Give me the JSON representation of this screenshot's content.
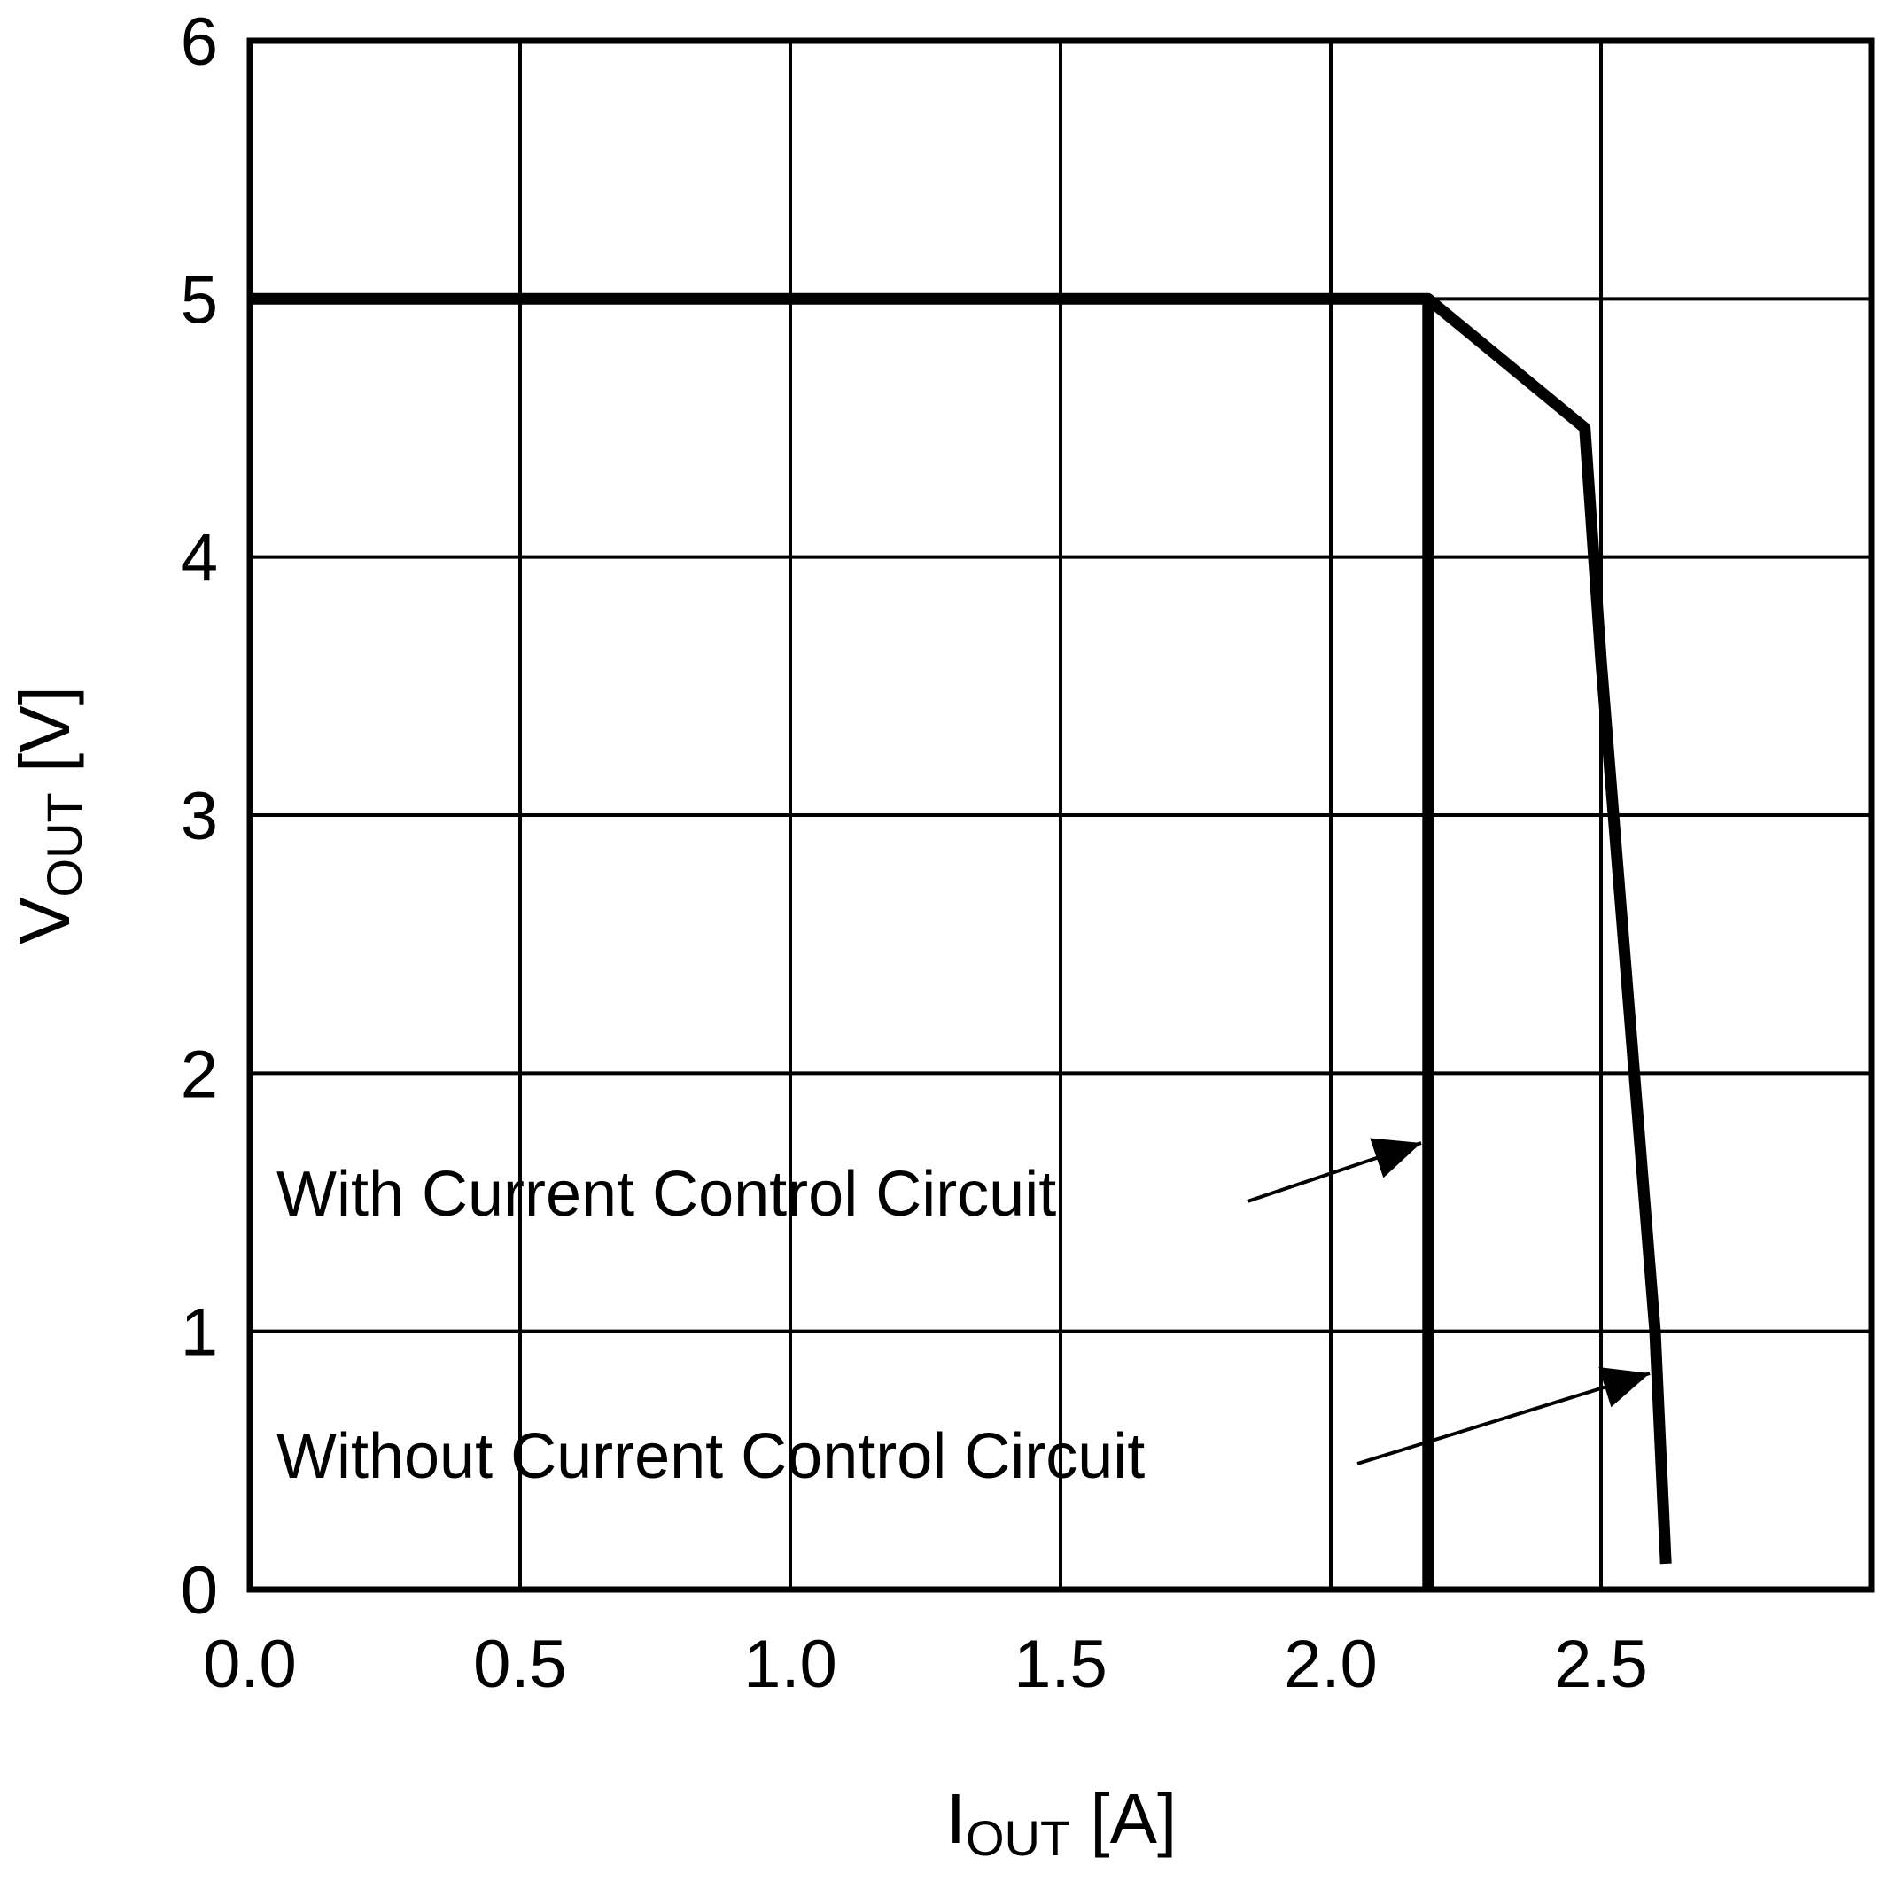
{
  "chart_data": {
    "type": "line",
    "title": "",
    "xlabel": {
      "main": "I",
      "sub": "OUT",
      "unit": " [A]"
    },
    "ylabel": {
      "main": "V",
      "sub": "OUT",
      "unit": " [V]"
    },
    "xlim": [
      0,
      3.0
    ],
    "ylim": [
      0,
      6
    ],
    "x_ticks": [
      "0.0",
      "0.5",
      "1.0",
      "1.5",
      "2.0",
      "2.5"
    ],
    "x_tick_values": [
      0,
      0.5,
      1.0,
      1.5,
      2.0,
      2.5
    ],
    "y_ticks": [
      "0",
      "1",
      "2",
      "3",
      "4",
      "5",
      "6"
    ],
    "y_tick_values": [
      0,
      1,
      2,
      3,
      4,
      5,
      6
    ],
    "grid": true,
    "series": [
      {
        "name": "With Current Control Circuit",
        "points": [
          [
            0,
            5.0
          ],
          [
            2.18,
            5.0
          ],
          [
            2.18,
            0
          ]
        ]
      },
      {
        "name": "Without Current Control Circuit",
        "points": [
          [
            2.18,
            5.0
          ],
          [
            2.47,
            4.5
          ],
          [
            2.5,
            3.6
          ],
          [
            2.6,
            1.0
          ],
          [
            2.62,
            0.1
          ]
        ]
      }
    ],
    "annotations": [
      {
        "text": "With Current Control Circuit",
        "target": [
          2.18,
          1.75
        ]
      },
      {
        "text": "Without Current Control Circuit",
        "target": [
          2.6,
          0.8
        ]
      }
    ]
  }
}
